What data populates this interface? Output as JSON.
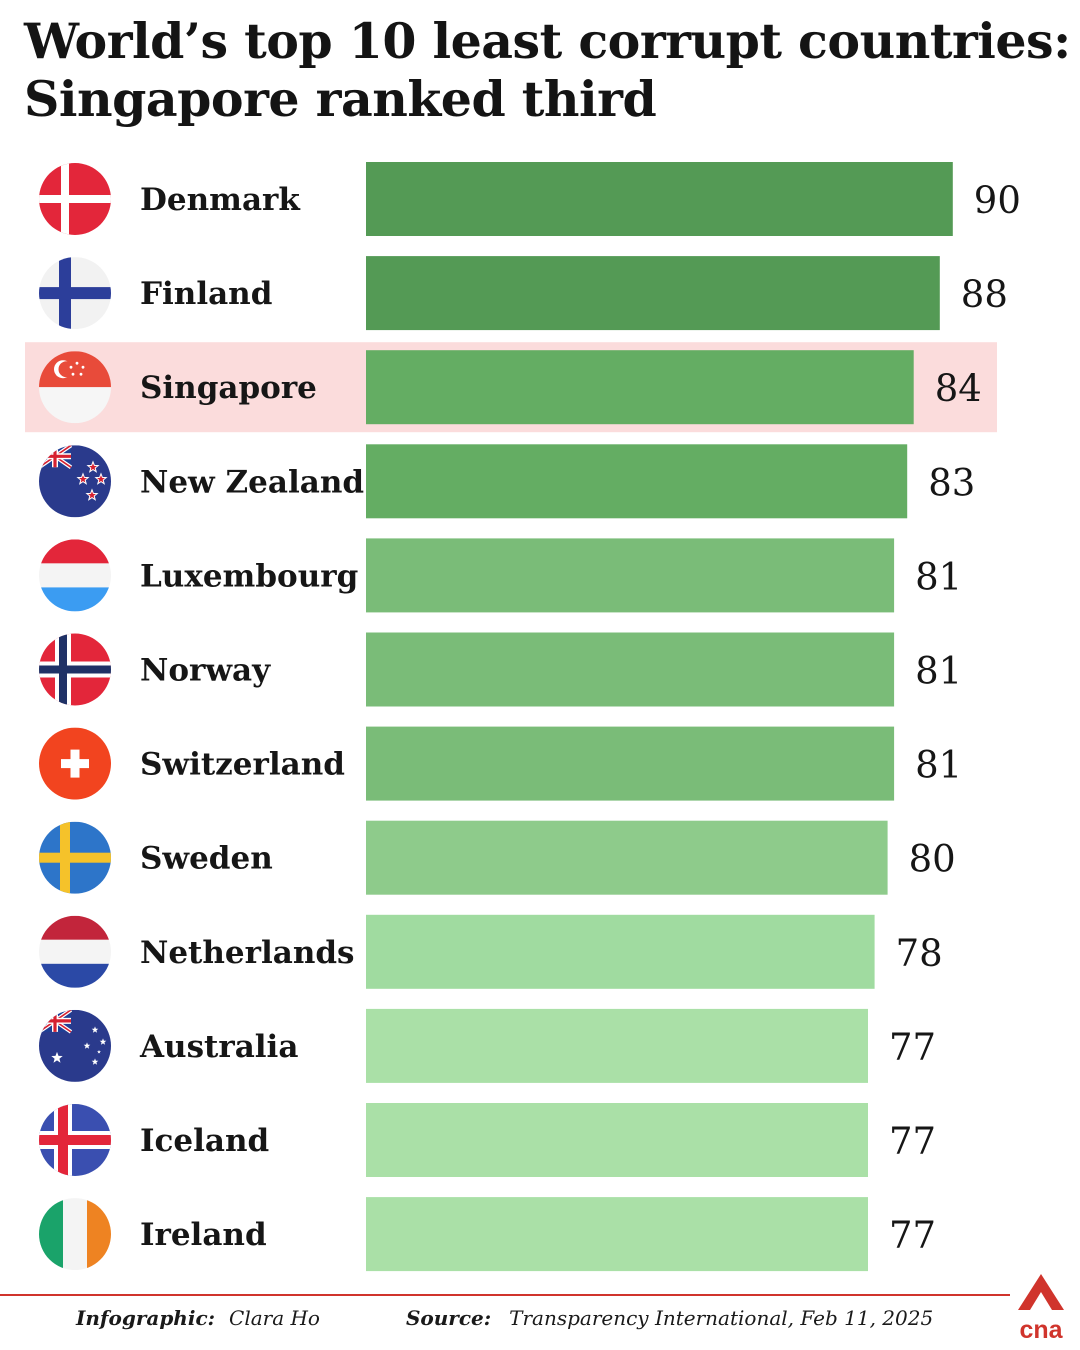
{
  "title_line1": "World’s top 10 least corrupt countries:",
  "title_line2": "Singapore ranked third",
  "chart_data": {
    "type": "bar",
    "orientation": "horizontal",
    "categories": [
      "Denmark",
      "Finland",
      "Singapore",
      "New Zealand",
      "Luxembourg",
      "Norway",
      "Switzerland",
      "Sweden",
      "Netherlands",
      "Australia",
      "Iceland",
      "Ireland"
    ],
    "values": [
      90,
      88,
      84,
      83,
      81,
      81,
      81,
      80,
      78,
      77,
      77,
      77
    ],
    "highlight": "Singapore",
    "highlight_color": "#fbdcdc",
    "bar_colors": [
      "#549a55",
      "#549a55",
      "#64ad63",
      "#64ad63",
      "#7abc78",
      "#7abc78",
      "#7abc78",
      "#8ecb8b",
      "#a0dba0",
      "#aae0a7",
      "#aae0a7",
      "#aae0a7"
    ],
    "flag_icons": [
      "denmark-flag-icon",
      "finland-flag-icon",
      "singapore-flag-icon",
      "new-zealand-flag-icon",
      "luxembourg-flag-icon",
      "norway-flag-icon",
      "switzerland-flag-icon",
      "sweden-flag-icon",
      "netherlands-flag-icon",
      "australia-flag-icon",
      "iceland-flag-icon",
      "ireland-flag-icon"
    ]
  },
  "footer": {
    "infographic_label": "Infographic:",
    "infographic_author": "Clara Ho",
    "source_label": "Source:",
    "source_text": "Transparency International, Feb 11, 2025"
  },
  "brand": {
    "logo_text": "cna",
    "color": "#d0342c"
  }
}
